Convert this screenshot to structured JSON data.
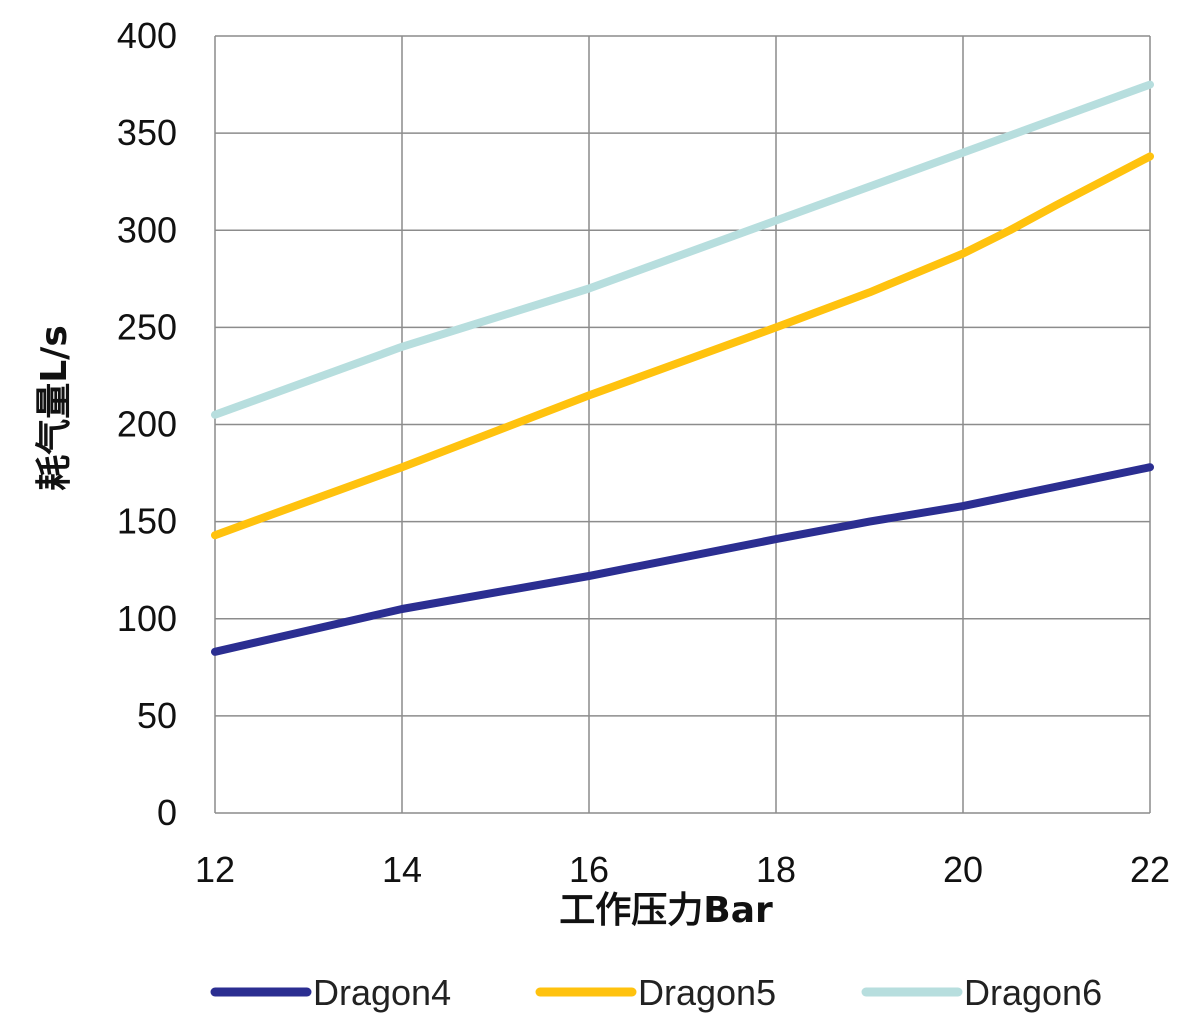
{
  "chart_data": {
    "type": "line",
    "title": "",
    "xlabel": "工作压力Bar",
    "ylabel": "耗气量L/s",
    "x": [
      12,
      14,
      16,
      18,
      20,
      22
    ],
    "xticks": [
      "12",
      "14",
      "16",
      "18",
      "20",
      "22"
    ],
    "yticks": [
      "0",
      "50",
      "100",
      "150",
      "200",
      "250",
      "300",
      "350",
      "400"
    ],
    "xlim": [
      12,
      22
    ],
    "ylim": [
      0,
      400
    ],
    "grid": true,
    "legend_position": "bottom",
    "series": [
      {
        "name": "Dragon4",
        "color": "#2b2e91",
        "x": [
          12,
          14,
          16,
          18,
          19,
          20,
          22
        ],
        "values": [
          83,
          105,
          122,
          141,
          150,
          158,
          178
        ]
      },
      {
        "name": "Dragon5",
        "color": "#ffc20e",
        "x": [
          12,
          14,
          16,
          18,
          19,
          20,
          20.5,
          21,
          22
        ],
        "values": [
          143,
          178,
          215,
          250,
          268,
          288,
          300,
          313,
          338
        ]
      },
      {
        "name": "Dragon6",
        "color": "#b7dede",
        "x": [
          12,
          14,
          16,
          18,
          20,
          22
        ],
        "values": [
          205,
          240,
          270,
          305,
          340,
          375
        ]
      }
    ]
  }
}
